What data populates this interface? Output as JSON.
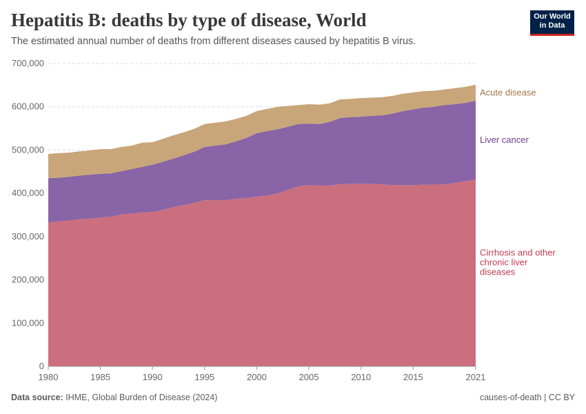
{
  "header": {
    "title": "Hepatitis B: deaths by type of disease, World",
    "subtitle": "The estimated annual number of deaths from different diseases caused by hepatitis B virus.",
    "logo": "Our World in Data"
  },
  "footer": {
    "source_label": "Data source:",
    "source": "IHME, Global Burden of Disease (2024)",
    "license": "causes-of-death | CC BY"
  },
  "chart_data": {
    "type": "area",
    "stacked": true,
    "title": "Hepatitis B: deaths by type of disease, World",
    "xlim": [
      1980,
      2021
    ],
    "ylim": [
      0,
      700000
    ],
    "grid": "horizontal dashed",
    "legend": "right (inline labels)",
    "x": [
      1980,
      1981,
      1982,
      1983,
      1984,
      1985,
      1986,
      1987,
      1988,
      1989,
      1990,
      1991,
      1992,
      1993,
      1994,
      1995,
      1996,
      1997,
      1998,
      1999,
      2000,
      2001,
      2002,
      2003,
      2004,
      2005,
      2006,
      2007,
      2008,
      2009,
      2010,
      2011,
      2012,
      2013,
      2014,
      2015,
      2016,
      2017,
      2018,
      2019,
      2020,
      2021
    ],
    "x_ticks": [
      "1980",
      "1985",
      "1990",
      "1995",
      "2000",
      "2005",
      "2010",
      "2015",
      "2021"
    ],
    "y_ticks": [
      "0",
      "100,000",
      "200,000",
      "300,000",
      "400,000",
      "500,000",
      "600,000",
      "700,000"
    ],
    "series": [
      {
        "name": "Cirrhosis and other chronic liver diseases",
        "label_lines": [
          "Cirrhosis and other",
          "chronic liver",
          "diseases"
        ],
        "color": "#cb6f7e",
        "label_color": "#c23c54",
        "values": [
          333000,
          335000,
          337000,
          340000,
          341000,
          344000,
          346000,
          351000,
          353000,
          356000,
          357000,
          362000,
          368000,
          373000,
          378000,
          384000,
          384000,
          384000,
          387000,
          389000,
          392000,
          395000,
          400000,
          408000,
          416000,
          419000,
          418000,
          418000,
          421000,
          422000,
          422000,
          422000,
          421000,
          419000,
          419000,
          419000,
          420000,
          420000,
          421000,
          424000,
          428000,
          432000
        ]
      },
      {
        "name": "Liver cancer",
        "label_lines": [
          "Liver cancer"
        ],
        "color": "#8964a6",
        "label_color": "#6d3e91",
        "values": [
          102000,
          101000,
          101000,
          101000,
          102000,
          101000,
          100000,
          100000,
          103000,
          105000,
          109000,
          111000,
          112000,
          115000,
          118000,
          123000,
          126000,
          129000,
          133000,
          139000,
          147000,
          149000,
          148000,
          146000,
          144000,
          142000,
          142000,
          147000,
          153000,
          154000,
          155000,
          157000,
          159000,
          165000,
          171000,
          175000,
          178000,
          180000,
          183000,
          182000,
          181000,
          182000
        ]
      },
      {
        "name": "Acute disease",
        "label_lines": [
          "Acute disease"
        ],
        "color": "#c8a67a",
        "label_color": "#a2774a",
        "values": [
          56000,
          57000,
          56000,
          56000,
          56000,
          57000,
          56000,
          56000,
          54000,
          56000,
          52000,
          53000,
          54000,
          53000,
          53000,
          53000,
          53000,
          53000,
          52000,
          51000,
          51000,
          51000,
          52000,
          48000,
          44000,
          45000,
          45000,
          43000,
          43000,
          42000,
          43000,
          42000,
          42000,
          41000,
          40000,
          39000,
          38000,
          37000,
          36000,
          37000,
          37000,
          37000
        ]
      }
    ]
  }
}
